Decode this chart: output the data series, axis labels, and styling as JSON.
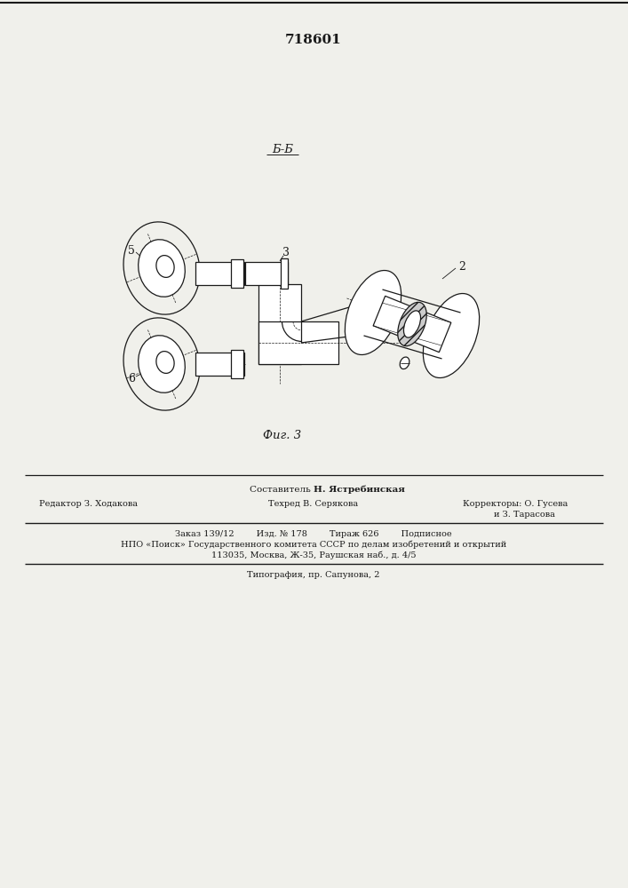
{
  "title_number": "718601",
  "section_label": "Б-Б",
  "fig_label": "Фиг. 3",
  "label_5": "5",
  "label_6": "6",
  "label_2": "2",
  "label_3": "3",
  "bg_color": "#f0f0eb",
  "line_color": "#1a1a1a",
  "footer_line0": "Составитель Н. Ястребинская",
  "footer_line1a": "Редактор З. Ходакова",
  "footer_line1b": "Техред В. Серякова",
  "footer_line1c": "Корректоры: О. Гусева",
  "footer_line1d": "и З. Тарасова",
  "footer_line2": "Заказ 139/12        Изд. № 178        Тираж 626        Подписное",
  "footer_line3": "НПО «Поиск» Государственного комитета СССР по делам изобретений и открытий",
  "footer_line4": "113035, Москва, Ж-35, Раушская наб., д. 4/5",
  "footer_line5": "Типография, пр. Сапунова, 2"
}
